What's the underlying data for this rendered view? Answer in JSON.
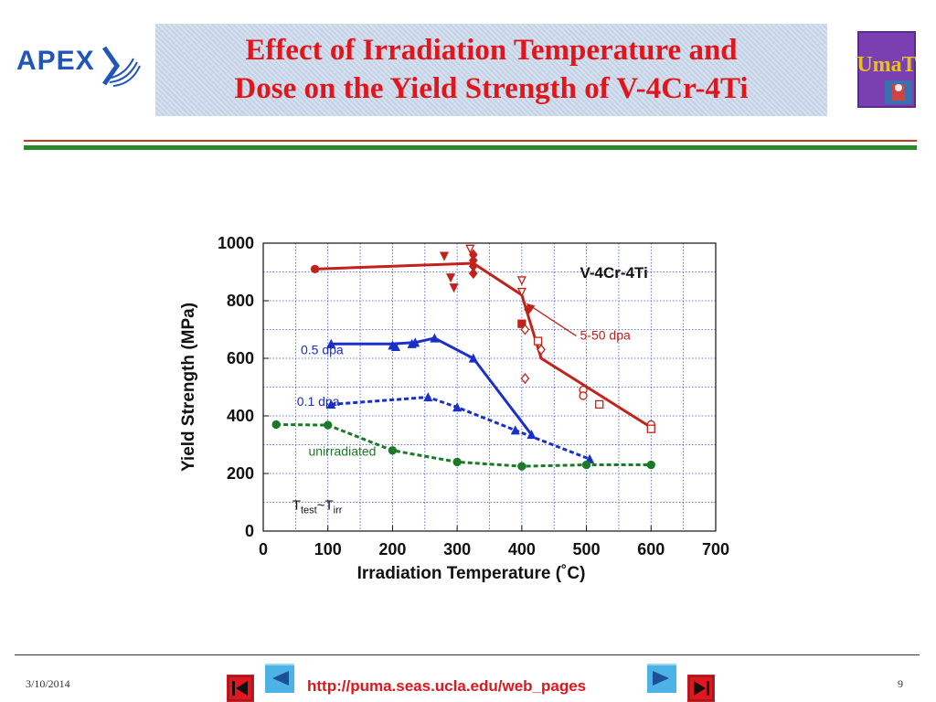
{
  "slide": {
    "logo_left_text": "APEX",
    "title_line1": "Effect of Irradiation Temperature and",
    "title_line2": "Dose on the Yield Strength of V-4Cr-4Ti",
    "logo_right_text": "UmaT"
  },
  "footer": {
    "date": "3/10/2014",
    "url": "http://puma.seas.ucla.edu/web_pages",
    "page_number": "9",
    "nav_icons": [
      "first-slide-icon",
      "previous-slide-icon",
      "next-slide-icon",
      "last-slide-icon"
    ]
  },
  "chart_data": {
    "type": "line",
    "xlabel": "Irradiation Temperature (˚C)",
    "ylabel": "Yield Strength (MPa)",
    "xlim": [
      0,
      700
    ],
    "ylim": [
      0,
      1000
    ],
    "x_ticks": [
      0,
      100,
      200,
      300,
      400,
      500,
      600,
      700
    ],
    "y_ticks": [
      0,
      200,
      400,
      600,
      800,
      1000
    ],
    "grid": true,
    "material_label": "V-4Cr-4Ti",
    "condition_label_main": "T",
    "condition_label_sub1": "test",
    "condition_label_mid": "~T",
    "condition_label_sub2": "irr",
    "series": [
      {
        "name": "5-50 dpa",
        "color": "#c1231b",
        "style": "solid",
        "line": {
          "x": [
            80,
            325,
            400,
            430,
            600
          ],
          "y": [
            910,
            930,
            820,
            600,
            360
          ]
        },
        "points": [
          {
            "x": 80,
            "y": 910,
            "m": "dot"
          },
          {
            "x": 290,
            "y": 880,
            "m": "tri-down"
          },
          {
            "x": 295,
            "y": 845,
            "m": "tri-down"
          },
          {
            "x": 280,
            "y": 955,
            "m": "tri-down"
          },
          {
            "x": 320,
            "y": 980,
            "m": "tri-down-open"
          },
          {
            "x": 325,
            "y": 960,
            "m": "diamond"
          },
          {
            "x": 325,
            "y": 940,
            "m": "diamond"
          },
          {
            "x": 325,
            "y": 920,
            "m": "diamond"
          },
          {
            "x": 325,
            "y": 895,
            "m": "diamond"
          },
          {
            "x": 400,
            "y": 870,
            "m": "tri-down-open"
          },
          {
            "x": 400,
            "y": 830,
            "m": "tri-down-open"
          },
          {
            "x": 400,
            "y": 720,
            "m": "square"
          },
          {
            "x": 405,
            "y": 700,
            "m": "diamond-open"
          },
          {
            "x": 405,
            "y": 530,
            "m": "diamond-open"
          },
          {
            "x": 410,
            "y": 770,
            "m": "diamond"
          },
          {
            "x": 425,
            "y": 660,
            "m": "square-open"
          },
          {
            "x": 430,
            "y": 630,
            "m": "diamond-open"
          },
          {
            "x": 495,
            "y": 490,
            "m": "circle-open"
          },
          {
            "x": 495,
            "y": 470,
            "m": "circle-open"
          },
          {
            "x": 520,
            "y": 440,
            "m": "square-open"
          },
          {
            "x": 600,
            "y": 370,
            "m": "circle-open"
          },
          {
            "x": 600,
            "y": 355,
            "m": "square-open"
          }
        ]
      },
      {
        "name": "0.5 dpa",
        "color": "#1a2fc9",
        "style": "solid",
        "line": {
          "x": [
            105,
            200,
            235,
            265,
            325,
            415
          ],
          "y": [
            650,
            650,
            655,
            670,
            600,
            335
          ]
        },
        "points": [
          {
            "x": 105,
            "y": 650,
            "m": "tri"
          },
          {
            "x": 200,
            "y": 645,
            "m": "tri"
          },
          {
            "x": 205,
            "y": 640,
            "m": "tri"
          },
          {
            "x": 230,
            "y": 650,
            "m": "tri"
          },
          {
            "x": 235,
            "y": 655,
            "m": "tri"
          },
          {
            "x": 265,
            "y": 670,
            "m": "tri"
          },
          {
            "x": 325,
            "y": 600,
            "m": "tri"
          },
          {
            "x": 415,
            "y": 335,
            "m": "tri"
          }
        ]
      },
      {
        "name": "0.1 dpa",
        "color": "#1a2fc9",
        "style": "dashed",
        "line": {
          "x": [
            105,
            255,
            300,
            390,
            505
          ],
          "y": [
            440,
            465,
            430,
            350,
            250
          ]
        },
        "points": [
          {
            "x": 105,
            "y": 440,
            "m": "tri"
          },
          {
            "x": 255,
            "y": 465,
            "m": "tri"
          },
          {
            "x": 300,
            "y": 430,
            "m": "tri"
          },
          {
            "x": 390,
            "y": 350,
            "m": "tri"
          },
          {
            "x": 505,
            "y": 250,
            "m": "tri"
          }
        ]
      },
      {
        "name": "unirradiated",
        "color": "#1a7a28",
        "style": "dashed",
        "line": {
          "x": [
            20,
            100,
            200,
            300,
            400,
            500,
            600
          ],
          "y": [
            370,
            368,
            280,
            240,
            225,
            230,
            230
          ]
        },
        "points": [
          {
            "x": 20,
            "y": 370,
            "m": "dot"
          },
          {
            "x": 100,
            "y": 368,
            "m": "dot"
          },
          {
            "x": 200,
            "y": 280,
            "m": "dot"
          },
          {
            "x": 300,
            "y": 240,
            "m": "dot"
          },
          {
            "x": 400,
            "y": 225,
            "m": "dot"
          },
          {
            "x": 500,
            "y": 230,
            "m": "dot"
          },
          {
            "x": 600,
            "y": 230,
            "m": "dot"
          }
        ]
      }
    ],
    "annotations": [
      {
        "text": "0.5 dpa",
        "x": 58,
        "y": 615,
        "color": "#1a2fc9"
      },
      {
        "text": "0.1 dpa",
        "x": 52,
        "y": 435,
        "color": "#1a2fc9"
      },
      {
        "text": "unirradiated",
        "x": 70,
        "y": 262,
        "color": "#1a7a28"
      },
      {
        "text": "5-50 dpa",
        "x": 490,
        "y": 665,
        "color": "#c1231b",
        "arrow_to": [
          408,
          790
        ]
      }
    ]
  }
}
